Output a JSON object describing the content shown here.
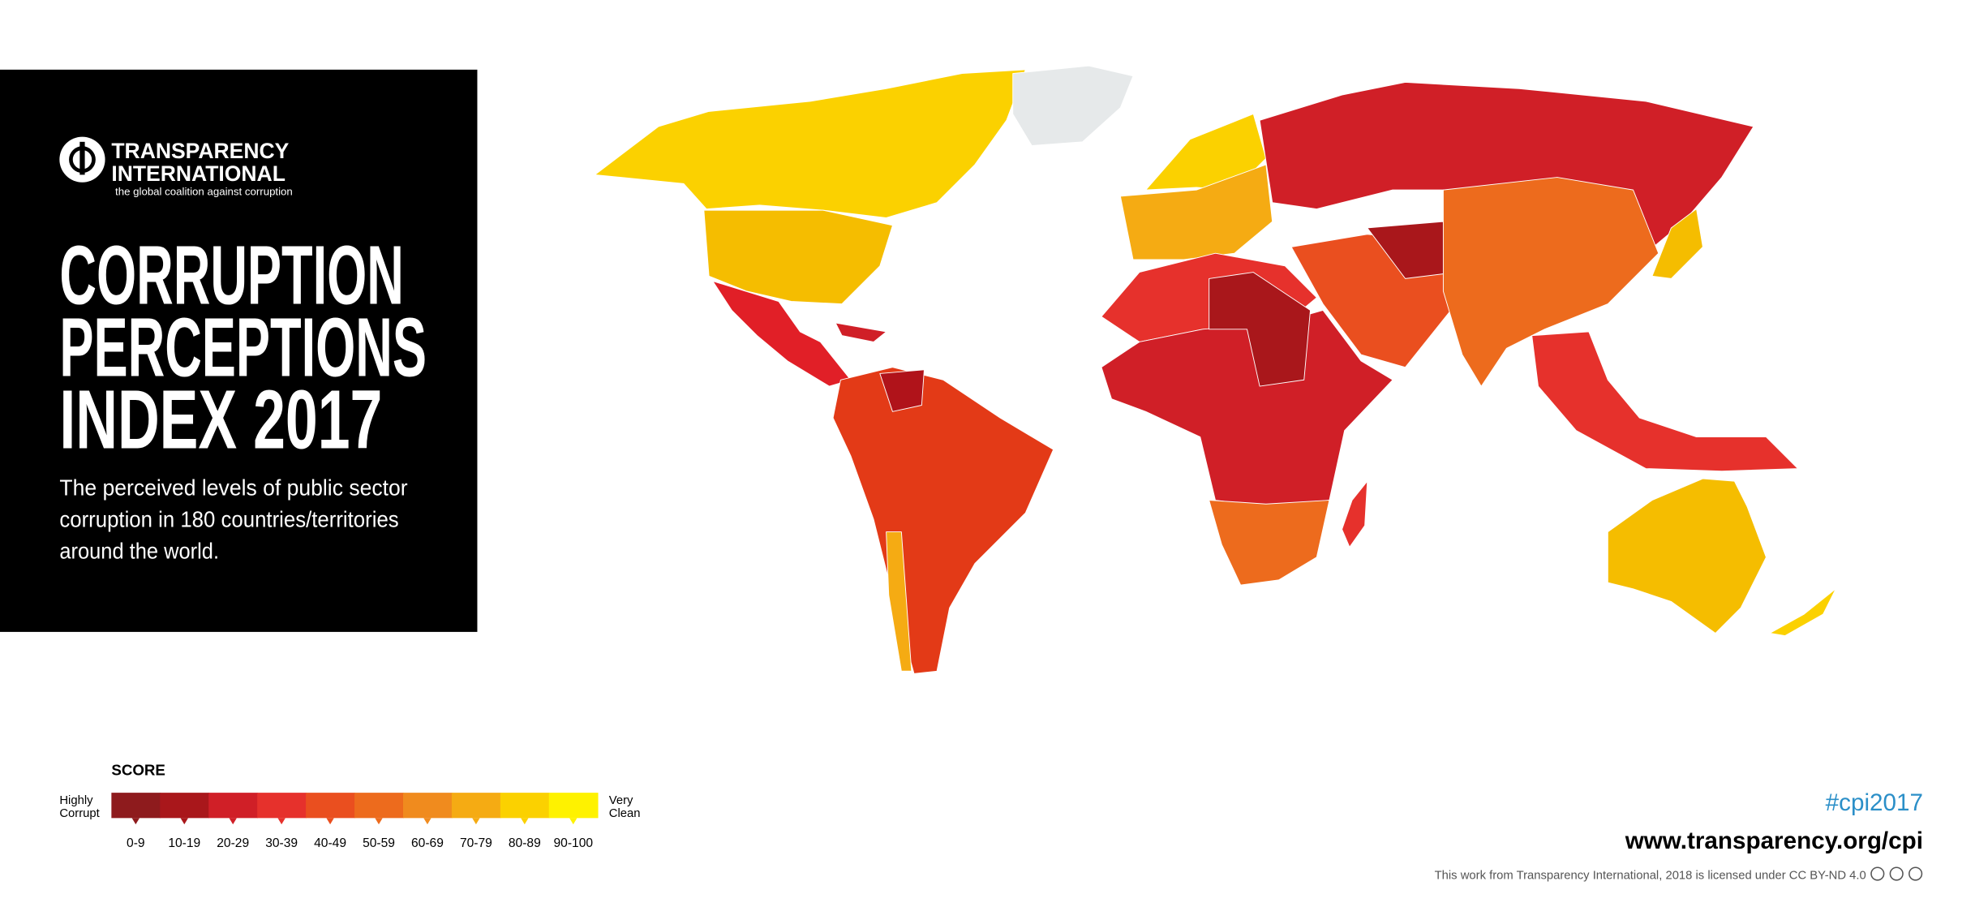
{
  "logo": {
    "line1": "TRANSPARENCY",
    "line2": "INTERNATIONAL",
    "tagline": "the global coalition against corruption"
  },
  "title": [
    "CORRUPTION",
    "PERCEPTIONS",
    "INDEX 2017"
  ],
  "subtitle": [
    "The perceived levels of public sector",
    "corruption in 180 countries/territories",
    "around the world."
  ],
  "legend": {
    "title": "SCORE",
    "low_label": [
      "Highly",
      "Corrupt"
    ],
    "high_label": [
      "Very",
      "Clean"
    ],
    "items": [
      {
        "label": "0-9",
        "color": "#8e1b1d"
      },
      {
        "label": "10-19",
        "color": "#a9171b"
      },
      {
        "label": "20-29",
        "color": "#d01f27"
      },
      {
        "label": "30-39",
        "color": "#e6312c"
      },
      {
        "label": "40-49",
        "color": "#ea4f1f"
      },
      {
        "label": "50-59",
        "color": "#ed6b1d"
      },
      {
        "label": "60-69",
        "color": "#f08b1e"
      },
      {
        "label": "70-79",
        "color": "#f5ab13"
      },
      {
        "label": "80-89",
        "color": "#fbd100"
      },
      {
        "label": "90-100",
        "color": "#fef200"
      }
    ]
  },
  "hashtag": "#cpi2017",
  "url": "www.transparency.org/cpi",
  "license": "This work from Transparency International, 2018 is licensed under CC BY-ND 4.0"
}
